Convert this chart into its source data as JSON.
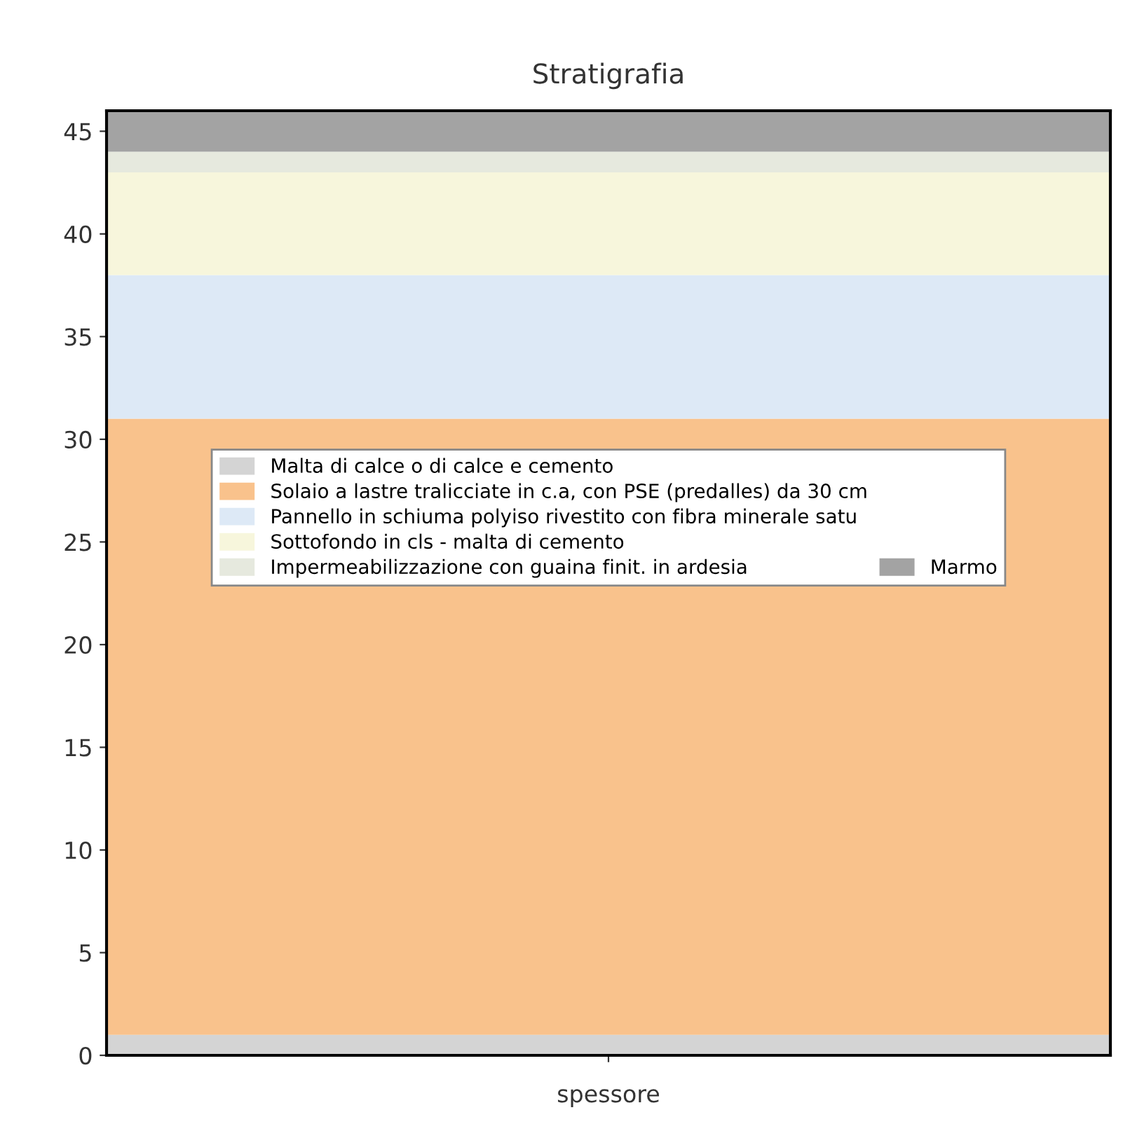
{
  "chart_data": {
    "type": "bar",
    "title": "Stratigrafia",
    "xlabel": "spessore",
    "categories": [
      null
    ],
    "stacked": true,
    "series": [
      {
        "name": "Malta di calce o di calce e cemento",
        "color": "#d4d4d4",
        "values": [
          1
        ]
      },
      {
        "name": "Solaio a lastre tralicciate in c.a, con PSE (predalles) da 30 cm",
        "color": "#f9c28c",
        "values": [
          30
        ]
      },
      {
        "name": "Pannello in schiuma polyiso rivestito con fibra minerale satu",
        "color": "#dde9f6",
        "values": [
          7
        ]
      },
      {
        "name": "Sottofondo in cls - malta di cemento",
        "color": "#f7f6dc",
        "values": [
          5
        ]
      },
      {
        "name": "Impermeabilizzazione con guaina finit. in ardesia",
        "color": "#e6e9de",
        "values": [
          1
        ]
      },
      {
        "name": "Marmo",
        "color": "#a3a3a3",
        "values": [
          2
        ]
      }
    ],
    "ylim": [
      0,
      46
    ],
    "yticks": [
      0,
      5,
      10,
      15,
      20,
      25,
      30,
      35,
      40,
      45
    ],
    "legend": "top",
    "grid": false
  }
}
